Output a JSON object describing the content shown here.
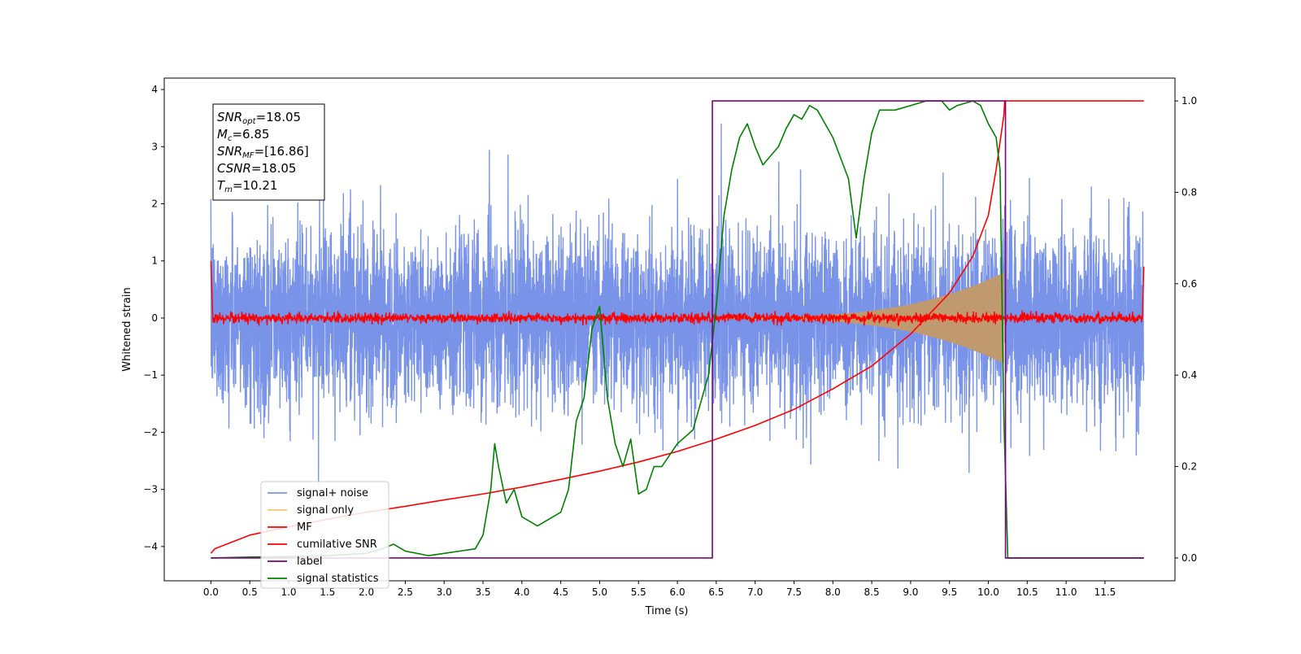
{
  "chart_data": {
    "type": "line",
    "xlabel": "Time (s)",
    "ylabel": "Whitened strain",
    "xlim": [
      -0.6,
      12.4
    ],
    "ylim": [
      -4.6,
      4.2
    ],
    "ylim_right": [
      -0.05,
      1.05
    ],
    "x_ticks": [
      0.0,
      0.5,
      1.0,
      1.5,
      2.0,
      2.5,
      3.0,
      3.5,
      4.0,
      4.5,
      5.0,
      5.5,
      6.0,
      6.5,
      7.0,
      7.5,
      8.0,
      8.5,
      9.0,
      9.5,
      10.0,
      10.5,
      11.0,
      11.5
    ],
    "x_tick_labels": [
      "0.0",
      "0.5",
      "1.0",
      "1.5",
      "2.0",
      "2.5",
      "3.0",
      "3.5",
      "4.0",
      "4.5",
      "5.0",
      "5.5",
      "6.0",
      "6.5",
      "7.0",
      "7.5",
      "8.0",
      "8.5",
      "9.0",
      "9.5",
      "10.0",
      "10.5",
      "11.0",
      "11.5"
    ],
    "y_ticks": [
      -4,
      -3,
      -2,
      -1,
      0,
      1,
      2,
      3,
      4
    ],
    "y_tick_labels": [
      "−4",
      "−3",
      "−2",
      "−1",
      "0",
      "1",
      "2",
      "3",
      "4"
    ],
    "y_right_ticks": [
      0.0,
      0.2,
      0.4,
      0.6,
      0.8,
      1.0
    ],
    "y_right_tick_labels": [
      "0.0",
      "0.2",
      "0.4",
      "0.6",
      "0.8",
      "1.0"
    ],
    "grid": false,
    "legend_position": "lower-left",
    "annotation": {
      "lines": [
        {
          "symbol": "SNR",
          "sub": "opt",
          "value": "=18.05"
        },
        {
          "symbol": "M",
          "sub": "c",
          "value": "=6.85"
        },
        {
          "symbol": "SNR",
          "sub": "MF",
          "value": "=[16.86]"
        },
        {
          "symbol": "CSNR",
          "sub": "",
          "value": "=18.05"
        },
        {
          "symbol": "T",
          "sub": "m",
          "value": "=10.21"
        }
      ]
    },
    "series": [
      {
        "name": "signal+ noise",
        "color": "#7893e8",
        "axis": "left",
        "x_range": [
          0.0,
          12.0
        ],
        "envelope_typical": [
          -1.6,
          1.6
        ],
        "extremes": [
          -4.15,
          3.75
        ]
      },
      {
        "name": "signal only",
        "color": "#f5c77a",
        "axis": "left",
        "chirp_start": 6.5,
        "chirp_end": 10.2,
        "amplitude_start": 0.02,
        "amplitude_end": 0.8
      },
      {
        "name": "MF",
        "color": "#ff0000",
        "axis": "left",
        "baseline": 0.0,
        "noise_amplitude": 0.08,
        "edge_values": [
          1.0,
          0.9
        ]
      },
      {
        "name": "cumilative SNR",
        "color": "#ff0000",
        "axis": "right",
        "x": [
          0.0,
          0.05,
          0.5,
          1.0,
          1.5,
          2.0,
          2.5,
          3.0,
          3.5,
          4.0,
          4.5,
          5.0,
          5.5,
          6.0,
          6.5,
          7.0,
          7.5,
          8.0,
          8.5,
          9.0,
          9.5,
          9.8,
          10.0,
          10.1,
          10.2,
          10.21,
          12.0
        ],
        "y": [
          0.01,
          0.02,
          0.05,
          0.068,
          0.085,
          0.1,
          0.113,
          0.127,
          0.14,
          0.155,
          0.172,
          0.19,
          0.21,
          0.233,
          0.26,
          0.29,
          0.325,
          0.37,
          0.42,
          0.49,
          0.58,
          0.66,
          0.75,
          0.85,
          0.97,
          1.0,
          1.0
        ]
      },
      {
        "name": "label",
        "color": "#800080",
        "axis": "right",
        "x": [
          0.0,
          6.45,
          6.45,
          10.22,
          10.22,
          12.0
        ],
        "y": [
          0.0,
          0.0,
          1.0,
          1.0,
          0.0,
          0.0
        ]
      },
      {
        "name": "signal statistics",
        "color": "#008000",
        "axis": "right",
        "x": [
          0.0,
          0.5,
          1.0,
          1.5,
          2.0,
          2.2,
          2.35,
          2.5,
          2.8,
          3.0,
          3.2,
          3.4,
          3.5,
          3.6,
          3.65,
          3.7,
          3.8,
          3.9,
          4.0,
          4.2,
          4.5,
          4.6,
          4.7,
          4.8,
          4.9,
          5.0,
          5.1,
          5.2,
          5.3,
          5.4,
          5.5,
          5.6,
          5.7,
          5.8,
          6.0,
          6.2,
          6.4,
          6.5,
          6.6,
          6.7,
          6.8,
          6.9,
          7.0,
          7.1,
          7.2,
          7.3,
          7.4,
          7.5,
          7.6,
          7.7,
          7.8,
          8.0,
          8.2,
          8.3,
          8.4,
          8.5,
          8.6,
          8.8,
          9.0,
          9.2,
          9.4,
          9.5,
          9.6,
          9.8,
          9.9,
          10.0,
          10.1,
          10.15,
          10.2,
          10.25,
          12.0
        ],
        "y": [
          0.0,
          0.002,
          0.003,
          0.005,
          0.01,
          0.02,
          0.03,
          0.015,
          0.005,
          0.01,
          0.015,
          0.02,
          0.05,
          0.15,
          0.25,
          0.2,
          0.12,
          0.15,
          0.09,
          0.07,
          0.1,
          0.15,
          0.3,
          0.35,
          0.5,
          0.55,
          0.35,
          0.25,
          0.2,
          0.26,
          0.14,
          0.15,
          0.2,
          0.2,
          0.25,
          0.28,
          0.4,
          0.55,
          0.75,
          0.85,
          0.92,
          0.95,
          0.9,
          0.86,
          0.88,
          0.9,
          0.94,
          0.97,
          0.96,
          0.99,
          0.98,
          0.92,
          0.83,
          0.7,
          0.83,
          0.93,
          0.98,
          0.98,
          0.99,
          1.0,
          1.0,
          0.98,
          0.99,
          1.0,
          0.99,
          0.95,
          0.92,
          0.85,
          0.3,
          0.0,
          0.0
        ]
      }
    ]
  }
}
